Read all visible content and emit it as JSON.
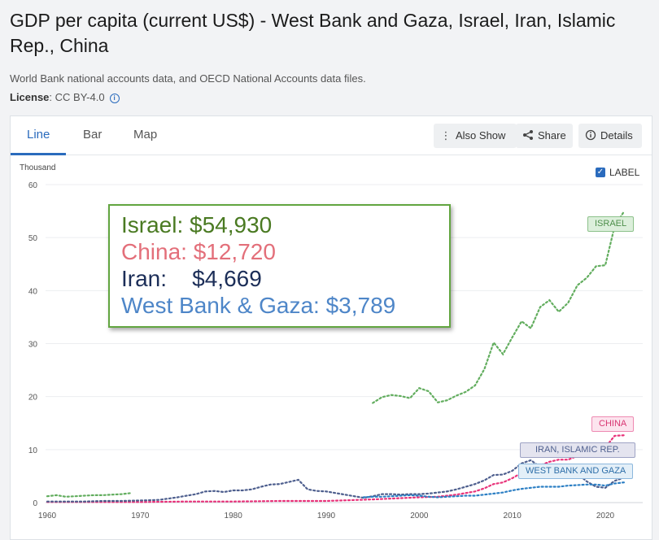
{
  "header": {
    "title": "GDP per capita (current US$) - West Bank and Gaza, Israel, Iran, Islamic Rep., China",
    "source": "World Bank national accounts data, and OECD National Accounts data files.",
    "license_label": "License",
    "license_value": ": CC BY-4.0"
  },
  "tabs": [
    {
      "label": "Line",
      "active": true
    },
    {
      "label": "Bar",
      "active": false
    },
    {
      "label": "Map",
      "active": false
    }
  ],
  "toolbar": {
    "also_show": "Also Show",
    "share": "Share",
    "details": "Details"
  },
  "label_toggle": {
    "label": "LABEL",
    "checked": true
  },
  "callout": {
    "israel": "Israel: $54,930",
    "china": "China: $12,720",
    "iran": "Iran:    $4,669",
    "wbg": "West Bank & Gaza: $3,789"
  },
  "colors": {
    "accent": "#2a6bbd",
    "israel": "#62ad5e",
    "china": "#e8337a",
    "iran": "#4e5f8e",
    "wbg": "#2c7fc4",
    "callout_israel": "#4a7a22",
    "callout_china": "#e36f7a",
    "callout_iran": "#1c2e58",
    "callout_wbg": "#4e86c8",
    "callout_border": "#62a540"
  },
  "chart_data": {
    "type": "line",
    "ylabel": "Thousand",
    "ylim": [
      0,
      60
    ],
    "xlim": [
      1960,
      2022
    ],
    "yticks": [
      0,
      10,
      20,
      30,
      40,
      50,
      60
    ],
    "xticks": [
      1960,
      1970,
      1980,
      1990,
      2000,
      2010,
      2020
    ],
    "grid": "horizontal",
    "series": [
      {
        "name": "ISRAEL",
        "label": "ISRAEL",
        "color": "#62ad5e",
        "x": [
          1960,
          1961,
          1962,
          1963,
          1964,
          1965,
          1966,
          1967,
          1968,
          1969,
          1995,
          1996,
          1997,
          1998,
          1999,
          2000,
          2001,
          2002,
          2003,
          2004,
          2005,
          2006,
          2007,
          2008,
          2009,
          2010,
          2011,
          2012,
          2013,
          2014,
          2015,
          2016,
          2017,
          2018,
          2019,
          2020,
          2021,
          2022
        ],
        "y": [
          1.2,
          1.4,
          1.1,
          1.2,
          1.3,
          1.4,
          1.4,
          1.5,
          1.6,
          1.8,
          18.8,
          19.9,
          20.3,
          20.1,
          19.7,
          21.6,
          21.0,
          18.9,
          19.3,
          20.2,
          20.9,
          22.1,
          25.2,
          30.2,
          28.0,
          31.2,
          34.2,
          32.9,
          36.9,
          38.2,
          36.0,
          37.7,
          41.0,
          42.4,
          44.6,
          44.8,
          52.1,
          54.9
        ]
      },
      {
        "name": "CHINA",
        "label": "CHINA",
        "color": "#e8337a",
        "x": [
          1960,
          1965,
          1970,
          1975,
          1980,
          1985,
          1990,
          1995,
          2000,
          2002,
          2004,
          2006,
          2007,
          2008,
          2009,
          2010,
          2011,
          2012,
          2013,
          2014,
          2015,
          2016,
          2017,
          2018,
          2019,
          2020,
          2021,
          2022
        ],
        "y": [
          0.1,
          0.1,
          0.1,
          0.2,
          0.2,
          0.3,
          0.3,
          0.6,
          1.0,
          1.1,
          1.5,
          2.1,
          2.7,
          3.5,
          3.8,
          4.6,
          5.6,
          6.3,
          7.0,
          7.7,
          8.1,
          8.1,
          8.8,
          9.9,
          10.2,
          10.4,
          12.6,
          12.7
        ]
      },
      {
        "name": "IRAN, ISLAMIC REP.",
        "label": "IRAN, ISLAMIC REP.",
        "color": "#4e5f8e",
        "x": [
          1960,
          1962,
          1964,
          1966,
          1968,
          1970,
          1972,
          1974,
          1975,
          1976,
          1977,
          1978,
          1979,
          1980,
          1981,
          1982,
          1983,
          1984,
          1985,
          1986,
          1987,
          1988,
          1989,
          1990,
          1994,
          1995,
          1996,
          1997,
          1998,
          1999,
          2000,
          2001,
          2002,
          2003,
          2004,
          2005,
          2006,
          2007,
          2008,
          2009,
          2010,
          2011,
          2012,
          2013,
          2014,
          2015,
          2016,
          2017,
          2018,
          2019,
          2020,
          2021,
          2022
        ],
        "y": [
          0.2,
          0.2,
          0.2,
          0.3,
          0.3,
          0.4,
          0.5,
          1.0,
          1.3,
          1.6,
          2.1,
          2.2,
          2.0,
          2.3,
          2.3,
          2.5,
          3.0,
          3.4,
          3.5,
          3.9,
          4.3,
          2.5,
          2.2,
          2.1,
          0.9,
          1.2,
          1.6,
          1.6,
          1.5,
          1.6,
          1.6,
          1.7,
          1.9,
          2.1,
          2.5,
          3.0,
          3.5,
          4.2,
          5.2,
          5.3,
          6.0,
          7.4,
          8.0,
          6.7,
          5.8,
          4.9,
          5.0,
          5.5,
          4.0,
          3.0,
          2.8,
          4.1,
          4.7
        ]
      },
      {
        "name": "WEST BANK AND GAZA",
        "label": "WEST BANK AND GAZA",
        "color": "#2c7fc4",
        "x": [
          1994,
          1995,
          1996,
          1997,
          1998,
          1999,
          2000,
          2001,
          2002,
          2003,
          2004,
          2005,
          2006,
          2007,
          2008,
          2009,
          2010,
          2011,
          2012,
          2013,
          2014,
          2015,
          2016,
          2017,
          2018,
          2019,
          2020,
          2021,
          2022
        ],
        "y": [
          1.0,
          1.1,
          1.1,
          1.2,
          1.3,
          1.4,
          1.3,
          1.1,
          1.0,
          1.1,
          1.2,
          1.3,
          1.3,
          1.5,
          1.7,
          1.9,
          2.3,
          2.6,
          2.8,
          3.0,
          3.0,
          3.0,
          3.2,
          3.3,
          3.4,
          3.4,
          3.2,
          3.6,
          3.8
        ]
      }
    ]
  }
}
